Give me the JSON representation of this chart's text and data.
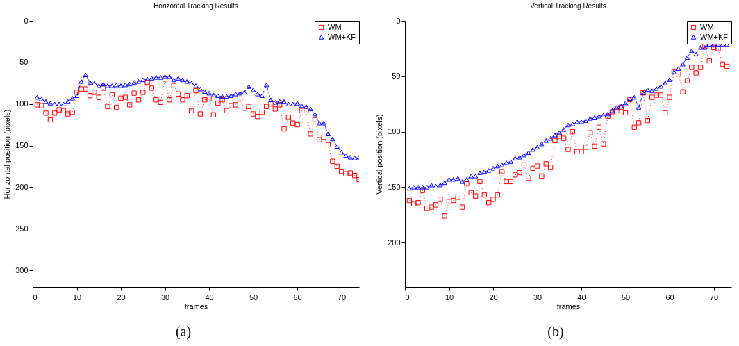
{
  "chart_data": [
    {
      "type": "line",
      "title": "Horizontal Tracking Results",
      "xlabel": "frames",
      "ylabel": "Horizontal position (pixels)",
      "annotations": [
        "(a)"
      ],
      "legend": "top right",
      "xlim": [
        0,
        74
      ],
      "xticks": [
        0,
        10,
        20,
        30,
        40,
        50,
        60,
        70
      ],
      "ylim": [
        320,
        0
      ],
      "yticks": [
        0,
        50,
        100,
        150,
        200,
        250,
        300
      ],
      "x": [
        1,
        2,
        3,
        4,
        5,
        6,
        7,
        8,
        9,
        10,
        11,
        12,
        13,
        14,
        15,
        16,
        17,
        18,
        19,
        20,
        21,
        22,
        23,
        24,
        25,
        26,
        27,
        28,
        29,
        30,
        31,
        32,
        33,
        34,
        35,
        36,
        37,
        38,
        39,
        40,
        41,
        42,
        43,
        44,
        45,
        46,
        47,
        48,
        49,
        50,
        51,
        52,
        53,
        54,
        55,
        56,
        57,
        58,
        59,
        60,
        61,
        62,
        63,
        64,
        65,
        66,
        67,
        68,
        69,
        70,
        71,
        72,
        73,
        74
      ],
      "series": [
        {
          "name": "WM",
          "color": "#ff0000",
          "marker": "square",
          "line_style": "dotted",
          "values": [
            101,
            102,
            111,
            119,
            111,
            107,
            108,
            112,
            110,
            86,
            82,
            82,
            90,
            86,
            92,
            81,
            103,
            89,
            104,
            93,
            92,
            101,
            87,
            95,
            86,
            74,
            81,
            95,
            98,
            70,
            95,
            78,
            88,
            95,
            90,
            108,
            84,
            112,
            95,
            94,
            113,
            99,
            95,
            108,
            102,
            101,
            94,
            105,
            103,
            112,
            115,
            110,
            103,
            100,
            106,
            101,
            130,
            116,
            123,
            125,
            108,
            108,
            136,
            119,
            143,
            140,
            149,
            169,
            175,
            181,
            184,
            183,
            186,
            191
          ]
        },
        {
          "name": "WM+KF",
          "color": "#0000ff",
          "marker": "triangle",
          "line_style": "dashed",
          "values": [
            92,
            94,
            97,
            99,
            100,
            100,
            100,
            97,
            93,
            90,
            73,
            65,
            74,
            75,
            78,
            76,
            78,
            78,
            77,
            78,
            77,
            76,
            74,
            73,
            71,
            70,
            69,
            68,
            68,
            67,
            67,
            71,
            69,
            71,
            73,
            75,
            78,
            82,
            85,
            87,
            89,
            90,
            91,
            91,
            90,
            88,
            87,
            86,
            79,
            83,
            88,
            90,
            77,
            95,
            98,
            97,
            97,
            100,
            100,
            99,
            102,
            103,
            106,
            112,
            123,
            123,
            136,
            142,
            151,
            158,
            162,
            164,
            165,
            164
          ]
        }
      ]
    },
    {
      "type": "line",
      "title": "Vertical Tracking Results",
      "xlabel": "frames",
      "ylabel": "Vertical position (pixels)",
      "annotations": [
        "(b)"
      ],
      "legend": "top right",
      "xlim": [
        0,
        74
      ],
      "xticks": [
        0,
        10,
        20,
        30,
        40,
        50,
        60,
        70
      ],
      "ylim": [
        240,
        0
      ],
      "yticks": [
        0,
        50,
        100,
        150,
        200
      ],
      "x": [
        1,
        2,
        3,
        4,
        5,
        6,
        7,
        8,
        9,
        10,
        11,
        12,
        13,
        14,
        15,
        16,
        17,
        18,
        19,
        20,
        21,
        22,
        23,
        24,
        25,
        26,
        27,
        28,
        29,
        30,
        31,
        32,
        33,
        34,
        35,
        36,
        37,
        38,
        39,
        40,
        41,
        42,
        43,
        44,
        45,
        46,
        47,
        48,
        49,
        50,
        51,
        52,
        53,
        54,
        55,
        56,
        57,
        58,
        59,
        60,
        61,
        62,
        63,
        64,
        65,
        66,
        67,
        68,
        69,
        70,
        71,
        72,
        73
      ],
      "series": [
        {
          "name": "WM",
          "color": "#ff0000",
          "marker": "square",
          "line_style": "dotted",
          "values": [
            162,
            165,
            164,
            153,
            169,
            168,
            166,
            161,
            176,
            163,
            162,
            159,
            168,
            147,
            155,
            158,
            145,
            157,
            164,
            161,
            157,
            136,
            145,
            145,
            139,
            137,
            130,
            142,
            133,
            131,
            140,
            129,
            132,
            108,
            104,
            106,
            116,
            100,
            118,
            118,
            114,
            101,
            113,
            96,
            111,
            86,
            82,
            81,
            78,
            83,
            71,
            96,
            92,
            65,
            90,
            69,
            67,
            67,
            83,
            69,
            46,
            48,
            64,
            54,
            42,
            47,
            42,
            23,
            36,
            24,
            25,
            39,
            41
          ]
        },
        {
          "name": "WM+KF",
          "color": "#0000ff",
          "marker": "triangle",
          "line_style": "dashed",
          "values": [
            151,
            150,
            150,
            150,
            150,
            148,
            149,
            148,
            146,
            143,
            143,
            142,
            145,
            143,
            140,
            140,
            137,
            136,
            135,
            133,
            131,
            130,
            128,
            127,
            124,
            123,
            121,
            119,
            116,
            114,
            111,
            108,
            106,
            103,
            101,
            98,
            94,
            93,
            91,
            91,
            90,
            88,
            87,
            86,
            85,
            84,
            81,
            78,
            77,
            74,
            70,
            69,
            78,
            65,
            62,
            63,
            61,
            59,
            56,
            53,
            46,
            43,
            39,
            33,
            27,
            30,
            24,
            24,
            21,
            21,
            21,
            21,
            21
          ]
        }
      ]
    }
  ]
}
